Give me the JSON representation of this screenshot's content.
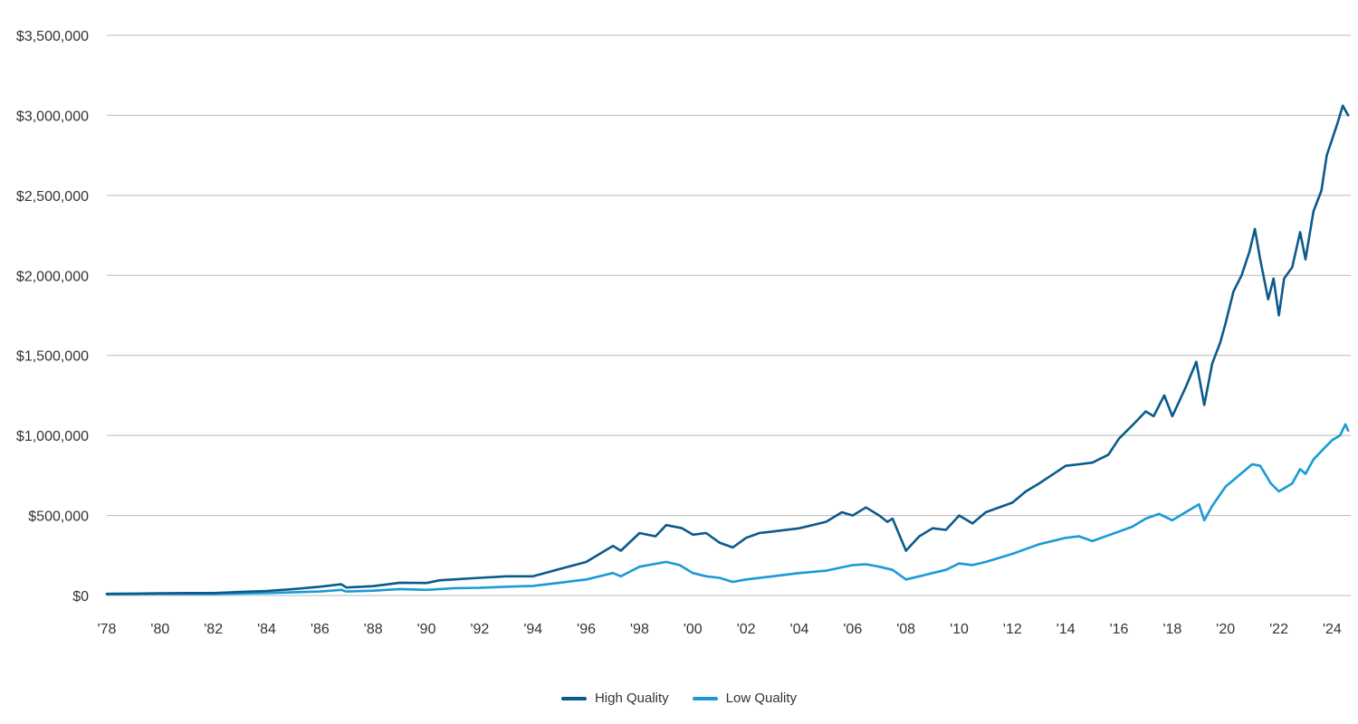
{
  "chart_data": {
    "type": "line",
    "title": "",
    "xlabel": "",
    "ylabel": "",
    "ylim": [
      0,
      3500000
    ],
    "yticks": [
      {
        "value": 0,
        "label": "$0"
      },
      {
        "value": 500000,
        "label": "$500,000"
      },
      {
        "value": 1000000,
        "label": "$1,000,000"
      },
      {
        "value": 1500000,
        "label": "$1,500,000"
      },
      {
        "value": 2000000,
        "label": "$2,000,000"
      },
      {
        "value": 2500000,
        "label": "$2,500,000"
      },
      {
        "value": 3000000,
        "label": "$3,000,000"
      },
      {
        "value": 3500000,
        "label": "$3,500,000"
      }
    ],
    "xlim": [
      1978.0,
      2024.7
    ],
    "xticks": [
      {
        "value": 1978,
        "label": "'78"
      },
      {
        "value": 1980,
        "label": "'80"
      },
      {
        "value": 1982,
        "label": "'82"
      },
      {
        "value": 1984,
        "label": "'84"
      },
      {
        "value": 1986,
        "label": "'86"
      },
      {
        "value": 1988,
        "label": "'88"
      },
      {
        "value": 1990,
        "label": "'90"
      },
      {
        "value": 1992,
        "label": "'92"
      },
      {
        "value": 1994,
        "label": "'94"
      },
      {
        "value": 1996,
        "label": "'96"
      },
      {
        "value": 1998,
        "label": "'98"
      },
      {
        "value": 2000,
        "label": "'00"
      },
      {
        "value": 2002,
        "label": "'02"
      },
      {
        "value": 2004,
        "label": "'04"
      },
      {
        "value": 2006,
        "label": "'06"
      },
      {
        "value": 2008,
        "label": "'08"
      },
      {
        "value": 2010,
        "label": "'10"
      },
      {
        "value": 2012,
        "label": "'12"
      },
      {
        "value": 2014,
        "label": "'14"
      },
      {
        "value": 2016,
        "label": "'16"
      },
      {
        "value": 2018,
        "label": "'18"
      },
      {
        "value": 2020,
        "label": "'20"
      },
      {
        "value": 2022,
        "label": "'22"
      },
      {
        "value": 2024,
        "label": "'24"
      }
    ],
    "grid": true,
    "legend_position": "bottom-center",
    "series": [
      {
        "name": "High Quality",
        "color": "#0b5a8c",
        "points": [
          [
            1978.0,
            10000
          ],
          [
            1979.0,
            12000
          ],
          [
            1980.0,
            14000
          ],
          [
            1981.0,
            15000
          ],
          [
            1982.0,
            15000
          ],
          [
            1983.0,
            22000
          ],
          [
            1984.0,
            28000
          ],
          [
            1985.0,
            40000
          ],
          [
            1986.0,
            55000
          ],
          [
            1986.8,
            70000
          ],
          [
            1987.0,
            50000
          ],
          [
            1988.0,
            58000
          ],
          [
            1989.0,
            80000
          ],
          [
            1990.0,
            78000
          ],
          [
            1990.5,
            95000
          ],
          [
            1991.0,
            100000
          ],
          [
            1992.0,
            110000
          ],
          [
            1993.0,
            120000
          ],
          [
            1994.0,
            120000
          ],
          [
            1995.0,
            165000
          ],
          [
            1996.0,
            210000
          ],
          [
            1997.0,
            310000
          ],
          [
            1997.3,
            280000
          ],
          [
            1998.0,
            390000
          ],
          [
            1998.6,
            370000
          ],
          [
            1999.0,
            440000
          ],
          [
            1999.6,
            420000
          ],
          [
            2000.0,
            380000
          ],
          [
            2000.5,
            390000
          ],
          [
            2001.0,
            330000
          ],
          [
            2001.5,
            300000
          ],
          [
            2002.0,
            360000
          ],
          [
            2002.5,
            390000
          ],
          [
            2003.0,
            400000
          ],
          [
            2004.0,
            420000
          ],
          [
            2005.0,
            460000
          ],
          [
            2005.6,
            520000
          ],
          [
            2006.0,
            500000
          ],
          [
            2006.5,
            550000
          ],
          [
            2007.0,
            500000
          ],
          [
            2007.3,
            460000
          ],
          [
            2007.5,
            480000
          ],
          [
            2008.0,
            280000
          ],
          [
            2008.5,
            370000
          ],
          [
            2009.0,
            420000
          ],
          [
            2009.5,
            410000
          ],
          [
            2010.0,
            500000
          ],
          [
            2010.5,
            450000
          ],
          [
            2011.0,
            520000
          ],
          [
            2012.0,
            580000
          ],
          [
            2012.5,
            650000
          ],
          [
            2013.0,
            700000
          ],
          [
            2014.0,
            810000
          ],
          [
            2014.5,
            820000
          ],
          [
            2015.0,
            830000
          ],
          [
            2015.6,
            880000
          ],
          [
            2016.0,
            980000
          ],
          [
            2016.6,
            1080000
          ],
          [
            2017.0,
            1150000
          ],
          [
            2017.3,
            1120000
          ],
          [
            2017.7,
            1250000
          ],
          [
            2018.0,
            1120000
          ],
          [
            2018.5,
            1300000
          ],
          [
            2018.9,
            1460000
          ],
          [
            2019.2,
            1190000
          ],
          [
            2019.5,
            1450000
          ],
          [
            2019.8,
            1580000
          ],
          [
            2020.0,
            1700000
          ],
          [
            2020.3,
            1900000
          ],
          [
            2020.6,
            2000000
          ],
          [
            2020.9,
            2150000
          ],
          [
            2021.1,
            2290000
          ],
          [
            2021.3,
            2100000
          ],
          [
            2021.6,
            1850000
          ],
          [
            2021.8,
            1980000
          ],
          [
            2022.0,
            1750000
          ],
          [
            2022.2,
            1980000
          ],
          [
            2022.5,
            2050000
          ],
          [
            2022.8,
            2270000
          ],
          [
            2023.0,
            2100000
          ],
          [
            2023.3,
            2400000
          ],
          [
            2023.6,
            2530000
          ],
          [
            2023.8,
            2750000
          ],
          [
            2024.0,
            2850000
          ],
          [
            2024.2,
            2950000
          ],
          [
            2024.4,
            3060000
          ],
          [
            2024.6,
            3000000
          ]
        ]
      },
      {
        "name": "Low Quality",
        "color": "#1a9ad6",
        "points": [
          [
            1978.0,
            8000
          ],
          [
            1980.0,
            10000
          ],
          [
            1982.0,
            10000
          ],
          [
            1984.0,
            15000
          ],
          [
            1986.0,
            25000
          ],
          [
            1986.8,
            35000
          ],
          [
            1987.0,
            25000
          ],
          [
            1988.0,
            30000
          ],
          [
            1989.0,
            40000
          ],
          [
            1990.0,
            35000
          ],
          [
            1991.0,
            45000
          ],
          [
            1992.0,
            48000
          ],
          [
            1993.0,
            55000
          ],
          [
            1994.0,
            60000
          ],
          [
            1995.0,
            80000
          ],
          [
            1996.0,
            100000
          ],
          [
            1997.0,
            140000
          ],
          [
            1997.3,
            120000
          ],
          [
            1998.0,
            180000
          ],
          [
            1999.0,
            210000
          ],
          [
            1999.5,
            190000
          ],
          [
            2000.0,
            140000
          ],
          [
            2000.5,
            120000
          ],
          [
            2001.0,
            110000
          ],
          [
            2001.5,
            85000
          ],
          [
            2002.0,
            100000
          ],
          [
            2003.0,
            120000
          ],
          [
            2004.0,
            140000
          ],
          [
            2005.0,
            155000
          ],
          [
            2006.0,
            190000
          ],
          [
            2006.5,
            195000
          ],
          [
            2007.0,
            180000
          ],
          [
            2007.5,
            160000
          ],
          [
            2008.0,
            100000
          ],
          [
            2008.5,
            120000
          ],
          [
            2009.0,
            140000
          ],
          [
            2009.5,
            160000
          ],
          [
            2010.0,
            200000
          ],
          [
            2010.5,
            190000
          ],
          [
            2011.0,
            210000
          ],
          [
            2012.0,
            260000
          ],
          [
            2013.0,
            320000
          ],
          [
            2014.0,
            360000
          ],
          [
            2014.5,
            370000
          ],
          [
            2015.0,
            340000
          ],
          [
            2016.0,
            400000
          ],
          [
            2016.5,
            430000
          ],
          [
            2017.0,
            480000
          ],
          [
            2017.5,
            510000
          ],
          [
            2018.0,
            470000
          ],
          [
            2018.5,
            520000
          ],
          [
            2019.0,
            570000
          ],
          [
            2019.2,
            470000
          ],
          [
            2019.5,
            560000
          ],
          [
            2020.0,
            680000
          ],
          [
            2020.5,
            750000
          ],
          [
            2021.0,
            820000
          ],
          [
            2021.3,
            810000
          ],
          [
            2021.7,
            700000
          ],
          [
            2022.0,
            650000
          ],
          [
            2022.5,
            700000
          ],
          [
            2022.8,
            790000
          ],
          [
            2023.0,
            760000
          ],
          [
            2023.3,
            850000
          ],
          [
            2023.7,
            920000
          ],
          [
            2024.0,
            970000
          ],
          [
            2024.3,
            1000000
          ],
          [
            2024.5,
            1070000
          ],
          [
            2024.6,
            1030000
          ]
        ]
      }
    ]
  }
}
